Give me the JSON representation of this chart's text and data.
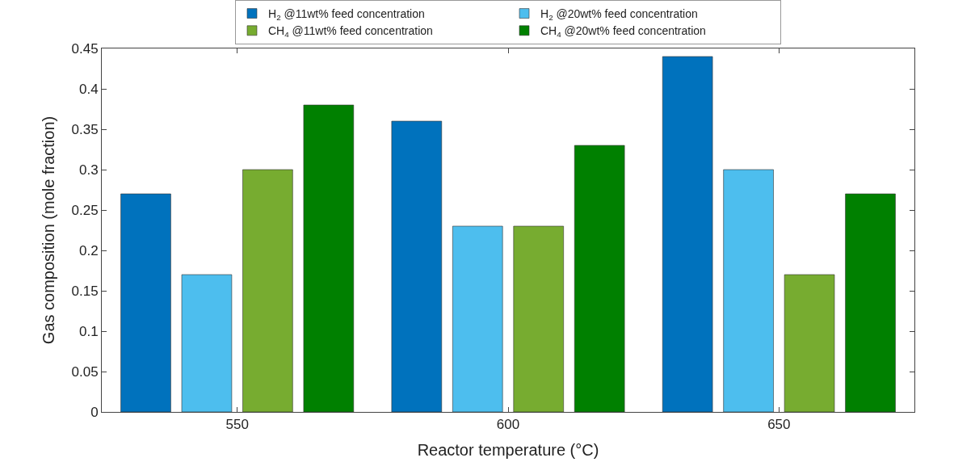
{
  "chart_data": {
    "type": "bar",
    "xlabel": "Reactor temperature (°C)",
    "ylabel": "Gas composition (mole fraction)",
    "categories": [
      "550",
      "600",
      "650"
    ],
    "series": [
      {
        "name": "H$_{2}$ @11wt% feed concentration",
        "color": "#0072bd",
        "values": [
          0.27,
          0.36,
          0.44
        ]
      },
      {
        "name": "H$_{2}$ @20wt% feed concentration",
        "color": "#4dbeee",
        "values": [
          0.17,
          0.23,
          0.3
        ]
      },
      {
        "name": "CH$_{4}$ @11wt% feed concentration",
        "color": "#77ac30",
        "values": [
          0.3,
          0.23,
          0.17
        ]
      },
      {
        "name": "CH$_{4}$ @20wt% feed concentration",
        "color": "#008000",
        "values": [
          0.38,
          0.33,
          0.27
        ]
      }
    ],
    "ylim": [
      0,
      0.45
    ],
    "yticks": [
      0,
      0.05,
      0.1,
      0.15,
      0.2,
      0.25,
      0.3,
      0.35,
      0.4,
      0.45
    ],
    "legend": "top"
  }
}
